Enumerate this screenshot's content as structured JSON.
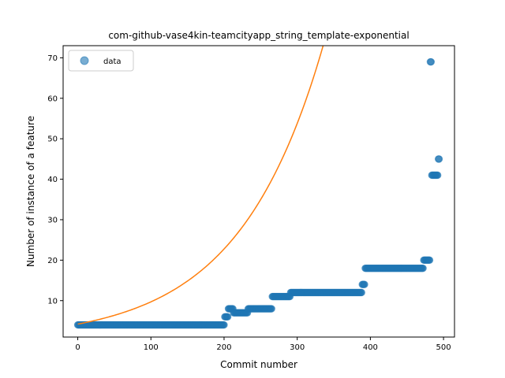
{
  "chart_data": {
    "type": "scatter",
    "title": "com-github-vase4kin-teamcityapp_string_template-exponential",
    "xlabel": "Commit number",
    "ylabel": "Number of instance of a feature",
    "xlim": [
      -20,
      515
    ],
    "ylim": [
      1,
      73
    ],
    "xticks": [
      0,
      100,
      200,
      300,
      400,
      500
    ],
    "yticks": [
      10,
      20,
      30,
      40,
      50,
      60,
      70
    ],
    "grid": false,
    "legend": {
      "position": "upper-left",
      "entries": [
        "data"
      ]
    },
    "colors": {
      "data": "#1f77b4",
      "fit": "#ff7f0e"
    },
    "series": [
      {
        "name": "data",
        "kind": "scatter",
        "segments": [
          {
            "x_start": 0,
            "x_end": 200,
            "y": 4
          },
          {
            "x_start": 201,
            "x_end": 205,
            "y": 6
          },
          {
            "x_start": 206,
            "x_end": 212,
            "y": 8
          },
          {
            "x_start": 213,
            "x_end": 232,
            "y": 7
          },
          {
            "x_start": 233,
            "x_end": 265,
            "y": 8
          },
          {
            "x_start": 266,
            "x_end": 290,
            "y": 11
          },
          {
            "x_start": 291,
            "x_end": 388,
            "y": 12
          },
          {
            "x_start": 389,
            "x_end": 392,
            "y": 14
          },
          {
            "x_start": 393,
            "x_end": 472,
            "y": 18
          },
          {
            "x_start": 473,
            "x_end": 481,
            "y": 20
          },
          {
            "x_start": 482,
            "x_end": 483,
            "y": 69
          },
          {
            "x_start": 484,
            "x_end": 492,
            "y": 41
          },
          {
            "x_start": 493,
            "x_end": 494,
            "y": 45
          }
        ]
      },
      {
        "kind": "line",
        "function": "exponential",
        "a": 4.0,
        "b": 0.2,
        "k": 0.00865,
        "x_range": [
          0,
          494
        ]
      }
    ]
  }
}
